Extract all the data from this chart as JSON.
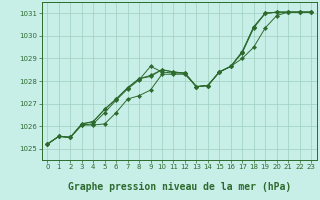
{
  "title": "Graphe pression niveau de la mer (hPa)",
  "background_color": "#c8eee8",
  "plot_bg_color": "#c8eee8",
  "line_color": "#2d6a2d",
  "grid_color": "#9ecfbf",
  "xlim": [
    -0.5,
    23.5
  ],
  "ylim": [
    1024.5,
    1031.5
  ],
  "yticks": [
    1025,
    1026,
    1027,
    1028,
    1029,
    1030,
    1031
  ],
  "xticks": [
    0,
    1,
    2,
    3,
    4,
    5,
    6,
    7,
    8,
    9,
    10,
    11,
    12,
    13,
    14,
    15,
    16,
    17,
    18,
    19,
    20,
    21,
    22,
    23
  ],
  "series": [
    [
      1025.2,
      1025.55,
      1025.5,
      1026.05,
      1026.1,
      1026.6,
      1027.15,
      1027.65,
      1028.05,
      1028.65,
      1028.4,
      1028.35,
      1028.35,
      1027.75,
      1027.8,
      1028.4,
      1028.65,
      1029.3,
      1030.4,
      1031.0,
      1031.05,
      1031.05,
      1031.05,
      1031.05
    ],
    [
      1025.2,
      1025.55,
      1025.5,
      1026.1,
      1026.2,
      1026.75,
      1027.2,
      1027.7,
      1028.1,
      1028.25,
      1028.5,
      1028.4,
      1028.35,
      1027.75,
      1027.8,
      1028.4,
      1028.65,
      1029.3,
      1030.4,
      1031.0,
      1031.05,
      1031.05,
      1031.05,
      1031.05
    ],
    [
      1025.2,
      1025.55,
      1025.5,
      1026.1,
      1026.2,
      1026.75,
      1027.2,
      1027.7,
      1028.1,
      1028.2,
      1028.5,
      1028.4,
      1028.35,
      1027.75,
      1027.8,
      1028.4,
      1028.65,
      1029.25,
      1030.35,
      1031.0,
      1031.05,
      1031.05,
      1031.05,
      1031.05
    ],
    [
      1025.2,
      1025.55,
      1025.5,
      1026.05,
      1026.05,
      1026.1,
      1026.6,
      1027.2,
      1027.35,
      1027.6,
      1028.3,
      1028.3,
      1028.3,
      1027.75,
      1027.8,
      1028.4,
      1028.65,
      1029.0,
      1029.5,
      1030.35,
      1030.9,
      1031.05,
      1031.05,
      1031.05
    ]
  ]
}
